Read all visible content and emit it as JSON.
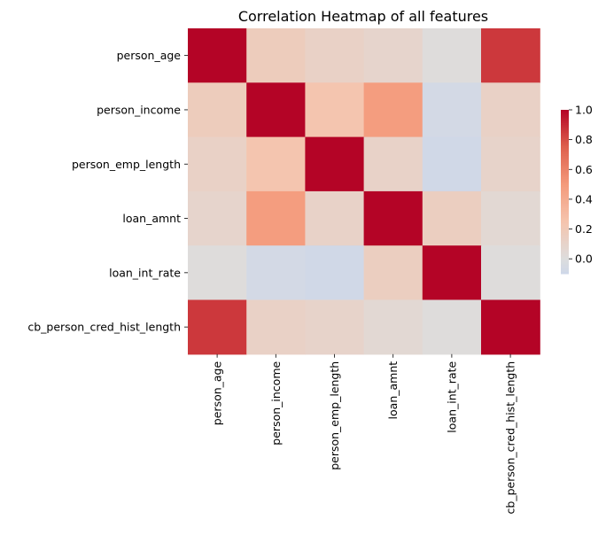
{
  "chart_data": {
    "type": "heatmap",
    "title": "Correlation Heatmap of all features",
    "xlabel": "",
    "ylabel": "",
    "rows": [
      "person_age",
      "person_income",
      "person_emp_length",
      "loan_amnt",
      "loan_int_rate",
      "cb_person_cred_hist_length"
    ],
    "cols": [
      "person_age",
      "person_income",
      "person_emp_length",
      "loan_amnt",
      "loan_int_rate",
      "cb_person_cred_hist_length"
    ],
    "values": [
      [
        1.0,
        0.17,
        0.12,
        0.09,
        0.01,
        0.86
      ],
      [
        0.17,
        1.0,
        0.24,
        0.48,
        -0.07,
        0.12
      ],
      [
        0.12,
        0.24,
        1.0,
        0.11,
        -0.09,
        0.1
      ],
      [
        0.09,
        0.48,
        0.11,
        1.0,
        0.15,
        0.05
      ],
      [
        0.01,
        -0.07,
        -0.09,
        0.15,
        1.0,
        0.01
      ],
      [
        0.86,
        0.12,
        0.1,
        0.05,
        0.01,
        1.0
      ]
    ],
    "colormap": "coolwarm",
    "center": 0,
    "vmin": -0.1,
    "vmax": 1.0,
    "colorbar_ticks": [
      "1.0",
      "0.8",
      "0.6",
      "0.4",
      "0.2",
      "0.0"
    ],
    "colorbar_tick_values": [
      1.0,
      0.8,
      0.6,
      0.4,
      0.2,
      0.0
    ]
  }
}
